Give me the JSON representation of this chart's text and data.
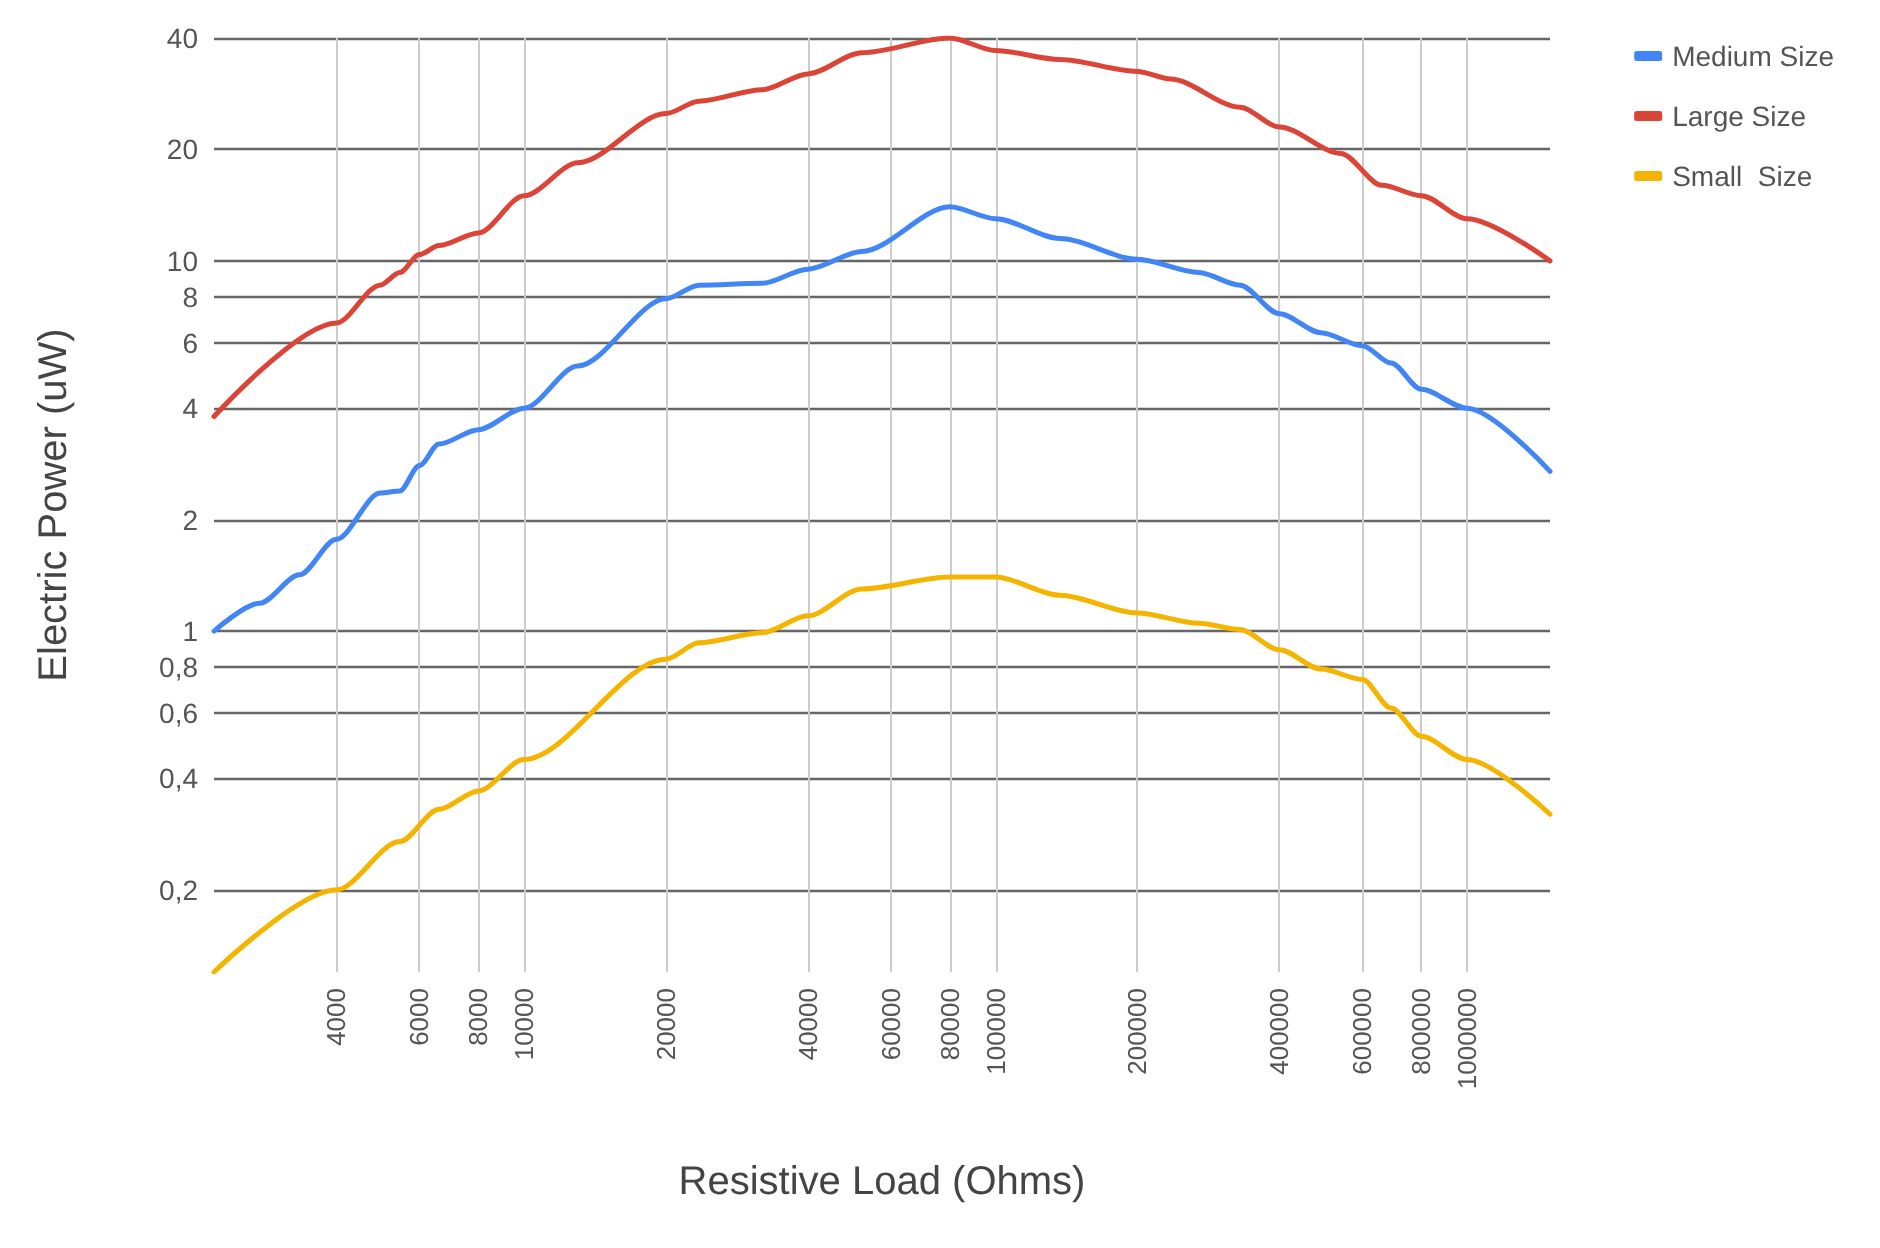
{
  "chart_data": {
    "type": "line",
    "xlabel": "Resistive Load (Ohms)",
    "ylabel": "Electric Power (uW)",
    "log": "xy",
    "grid": true,
    "legend": "top right",
    "marker": "none",
    "line_style": "solid",
    "xlim": [
      2200,
      1500000
    ],
    "ylim": [
      0.12,
      40
    ],
    "xticks": [
      4000,
      6000,
      8000,
      10000,
      20000,
      40000,
      60000,
      80000,
      100000,
      200000,
      400000,
      600000,
      800000,
      1000000
    ],
    "yticks": [
      {
        "value": 0.2,
        "label": "0,2"
      },
      {
        "value": 0.4,
        "label": "0,4"
      },
      {
        "value": 0.6,
        "label": "0,6"
      },
      {
        "value": 0.8,
        "label": "0,8"
      },
      1,
      2,
      4,
      6,
      8,
      10,
      20,
      40
    ],
    "series": [
      {
        "name": "Medium Size",
        "color": "#4285f4",
        "x": [
          2200,
          2750,
          3340,
          4000,
          4950,
          5450,
          6000,
          6600,
          8000,
          10000,
          13000,
          20000,
          23500,
          32000,
          40000,
          52000,
          80000,
          100000,
          137000,
          200000,
          270000,
          330000,
          400000,
          490000,
          600000,
          690000,
          800000,
          1000000,
          1500000
        ],
        "values": [
          1.0,
          1.19,
          1.42,
          1.77,
          2.36,
          2.39,
          2.8,
          3.2,
          3.5,
          4.0,
          5.2,
          7.9,
          8.6,
          8.7,
          9.5,
          10.6,
          14,
          13,
          11.5,
          10.1,
          9.3,
          8.6,
          7.2,
          6.4,
          5.9,
          5.3,
          4.5,
          4.0,
          2.7
        ]
      },
      {
        "name": "Large Size",
        "color": "#db4437",
        "x": [
          2200,
          4000,
          4950,
          5450,
          6000,
          6600,
          8000,
          10000,
          13000,
          20000,
          23500,
          32000,
          40000,
          52000,
          80000,
          100000,
          137000,
          200000,
          235000,
          330000,
          400000,
          540000,
          660000,
          800000,
          1000000,
          1500000
        ],
        "values": [
          3.8,
          6.8,
          8.6,
          9.3,
          10.4,
          11,
          11.9,
          15,
          18.4,
          25,
          27,
          29,
          32,
          36.5,
          40,
          37,
          35,
          32.5,
          31,
          26,
          23,
          19.5,
          16,
          15,
          13,
          10
        ]
      },
      {
        "name": "Small  Size",
        "color": "#f4b400",
        "x": [
          2200,
          4000,
          5450,
          6600,
          8000,
          10000,
          20000,
          23500,
          32000,
          40000,
          52000,
          80000,
          100000,
          137000,
          200000,
          270000,
          330000,
          400000,
          490000,
          600000,
          690000,
          800000,
          1000000,
          1500000
        ],
        "values": [
          0.12,
          0.2,
          0.27,
          0.33,
          0.37,
          0.45,
          0.84,
          0.93,
          0.99,
          1.1,
          1.3,
          1.4,
          1.4,
          1.25,
          1.12,
          1.05,
          1.01,
          0.89,
          0.79,
          0.74,
          0.62,
          0.52,
          0.45,
          0.32
        ]
      }
    ]
  }
}
